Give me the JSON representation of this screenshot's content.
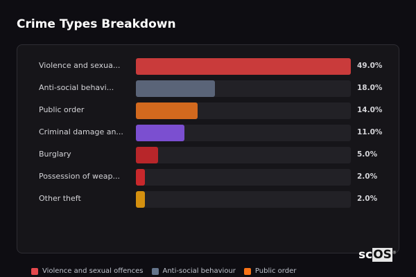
{
  "title": "Crime Types Breakdown",
  "chart_data": {
    "type": "bar",
    "orientation": "horizontal",
    "title": "Crime Types Breakdown",
    "categories": [
      "Violence and sexua...",
      "Anti-social behavi...",
      "Public order",
      "Criminal damage an...",
      "Burglary",
      "Possession of weap...",
      "Other theft"
    ],
    "values": [
      49.0,
      18.0,
      14.0,
      11.0,
      5.0,
      2.0,
      2.0
    ],
    "value_labels": [
      "49.0%",
      "18.0%",
      "14.0%",
      "11.0%",
      "5.0%",
      "2.0%",
      "2.0%"
    ],
    "colors": [
      "#c93b3b",
      "#5a6478",
      "#d2691e",
      "#7b4fd0",
      "#b8262a",
      "#c8282c",
      "#d4900f"
    ],
    "xlim": [
      0,
      49
    ],
    "legend": [
      {
        "label": "Violence and sexual offences",
        "color": "#e5484d"
      },
      {
        "label": "Anti-social behaviour",
        "color": "#64748b"
      },
      {
        "label": "Public order",
        "color": "#f97316"
      }
    ],
    "legend_position": "bottom"
  },
  "logo": {
    "text1": "sc",
    "text2": "OS",
    "mark": "®"
  }
}
